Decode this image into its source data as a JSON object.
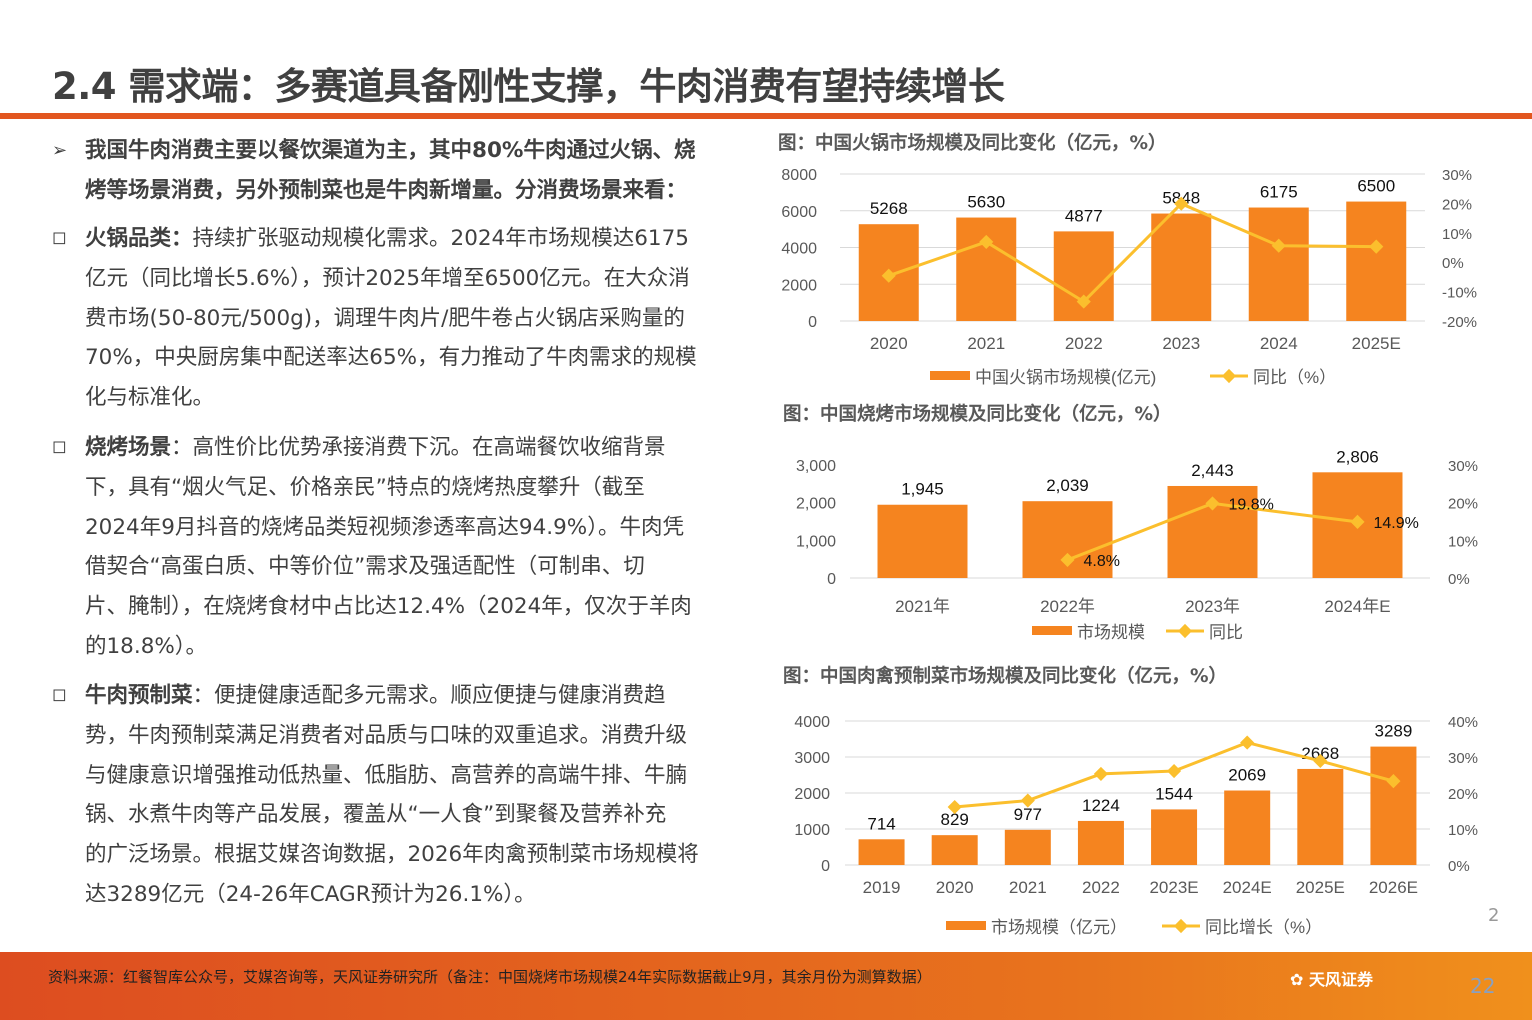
{
  "title": "2.4 需求端：多赛道具备刚性支撑，牛肉消费有望持续增长",
  "intro": [
    "我国牛肉消费主要以餐饮渠道为主，其中80%牛肉通过火锅、烧",
    "烤等场景消费，另外预制菜也是牛肉新增量。分消费场景来看："
  ],
  "sections": [
    {
      "bold": "火锅品类：",
      "lines": [
        "持续扩张驱动规模化需求。2024年市场规模达6175",
        "亿元（同比增长5.6%），预计2025年增至6500亿元。在大众消",
        "费市场(50-80元/500g)，调理牛肉片/肥牛卷占火锅店采购量的",
        "70%，中央厨房集中配送率达65%，有力推动了牛肉需求的规模",
        "化与标准化。"
      ]
    },
    {
      "bold": "烧烤场景",
      "lines": [
        "：高性价比优势承接消费下沉。在高端餐饮收缩背景",
        "下，具有“烟火气足、价格亲民”特点的烧烤热度攀升（截至",
        "2024年9月抖音的烧烤品类短视频渗透率高达94.9%）。牛肉凭",
        "借契合“高蛋白质、中等价位”需求及强适配性（可制串、切",
        "片、腌制），在烧烤食材中占比达12.4%（2024年，仅次于羊肉",
        "的18.8%）。"
      ]
    },
    {
      "bold": "牛肉预制菜",
      "lines": [
        "：便捷健康适配多元需求。顺应便捷与健康消费趋",
        "势，牛肉预制菜满足消费者对品质与口味的双重追求。消费升级",
        "与健康意识增强推动低热量、低脂肪、高营养的高端牛排、牛腩",
        "锅、水煮牛肉等产品发展，覆盖从“一人食”到聚餐及营养补充",
        "的广泛场景。根据艾媒咨询数据，2026年肉禽预制菜市场规模将",
        "达3289亿元（24-26年CAGR预计为26.1%）。"
      ]
    }
  ],
  "footer": {
    "source": "资料来源：红餐智库公众号，艾媒咨询等，天风证券研究所（备注：中国烧烤市场规模24年实际数据截止9月，其余月份为测算数据）",
    "logo": "天风证券",
    "page": "22",
    "page_small": "2"
  },
  "colors": {
    "bar": "#f5841f",
    "line": "#fbbf2d",
    "accent": "#e2561f"
  },
  "chart_data": [
    {
      "type": "bar+line",
      "title": "图：中国火锅市场规模及同比变化（亿元，%）",
      "categories": [
        "2020",
        "2021",
        "2022",
        "2023",
        "2024",
        "2025E"
      ],
      "series": [
        {
          "name": "中国火锅市场规模(亿元)",
          "type": "bar",
          "values": [
            5268,
            5630,
            4877,
            5848,
            6175,
            6500
          ],
          "labels": [
            "5268",
            "5630",
            "4877",
            "5848",
            "6175",
            "6500"
          ]
        },
        {
          "name": "同比（%）",
          "type": "line",
          "axis": "right",
          "values": [
            -4.6,
            6.9,
            -13.4,
            19.9,
            5.6,
            5.3
          ]
        }
      ],
      "ylim": [
        0,
        8000
      ],
      "yticks": [
        "0",
        "2000",
        "4000",
        "6000",
        "8000"
      ],
      "y2lim": [
        -20,
        30
      ],
      "y2ticks": [
        "-20%",
        "-10%",
        "0%",
        "10%",
        "20%",
        "30%"
      ],
      "grid": true,
      "legend": "bottom"
    },
    {
      "type": "bar+line",
      "title": "图：中国烧烤市场规模及同比变化（亿元，%）",
      "categories": [
        "2021年",
        "2022年",
        "2023年",
        "2024年E"
      ],
      "series": [
        {
          "name": "市场规模",
          "type": "bar",
          "values": [
            1945,
            2039,
            2443,
            2806
          ],
          "labels": [
            "1,945",
            "2,039",
            "2,443",
            "2,806"
          ]
        },
        {
          "name": "同比",
          "type": "line",
          "axis": "right",
          "values": [
            null,
            4.8,
            19.8,
            14.9
          ],
          "labels": [
            "",
            "4.8%",
            "19.8%",
            "14.9%"
          ]
        }
      ],
      "ylim": [
        0,
        3000
      ],
      "yticks": [
        "0",
        "1,000",
        "2,000",
        "3,000"
      ],
      "y2lim": [
        0,
        30
      ],
      "y2ticks": [
        "0%",
        "10%",
        "20%",
        "30%"
      ],
      "grid": false,
      "legend": "bottom"
    },
    {
      "type": "bar+line",
      "title": "图：中国肉禽预制菜市场规模及同比变化（亿元，%）",
      "categories": [
        "2019",
        "2020",
        "2021",
        "2022",
        "2023E",
        "2024E",
        "2025E",
        "2026E"
      ],
      "series": [
        {
          "name": "市场规模（亿元）",
          "type": "bar",
          "values": [
            714,
            829,
            977,
            1224,
            1544,
            2069,
            2668,
            3289
          ],
          "labels": [
            "714",
            "829",
            "977",
            "1224",
            "1544",
            "2069",
            "2668",
            "3289"
          ]
        },
        {
          "name": "同比增长（%）",
          "type": "line",
          "axis": "right",
          "values": [
            null,
            16.1,
            17.9,
            25.3,
            26.1,
            34.0,
            28.9,
            23.3
          ]
        }
      ],
      "ylim": [
        0,
        4000
      ],
      "yticks": [
        "0",
        "1000",
        "2000",
        "3000",
        "4000"
      ],
      "y2lim": [
        0,
        40
      ],
      "y2ticks": [
        "0%",
        "10%",
        "20%",
        "30%",
        "40%"
      ],
      "grid": true,
      "legend": "bottom"
    }
  ]
}
